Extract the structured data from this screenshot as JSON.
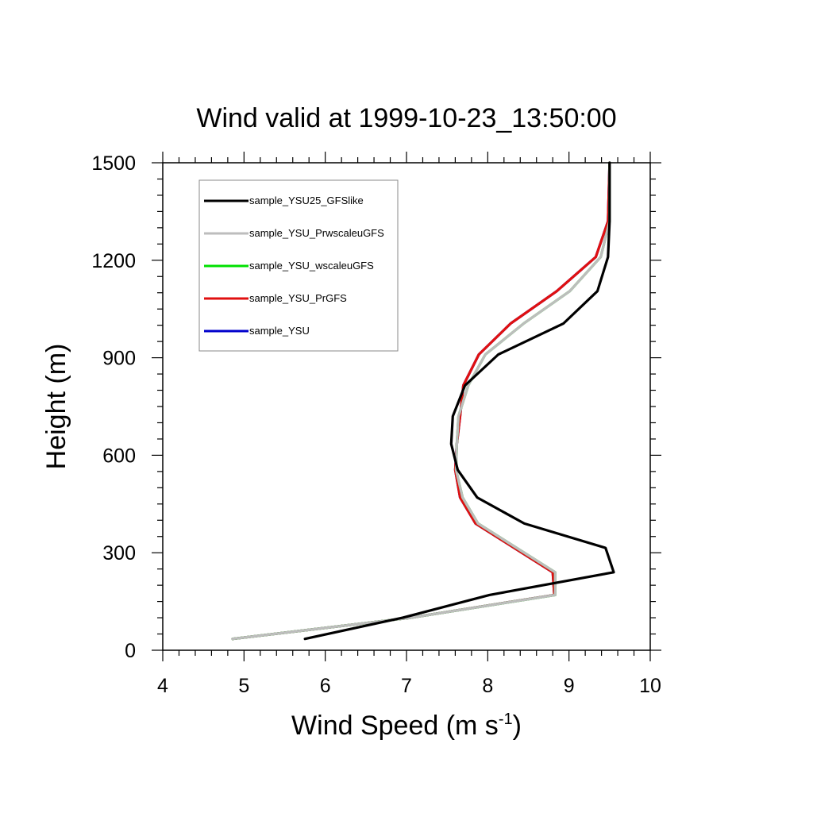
{
  "chart_data": {
    "type": "line",
    "title": "Wind valid at 1999-10-23_13:50:00",
    "xlabel": "Wind Speed (m s",
    "xlabel_sup": "-1",
    "xlabel_end": ")",
    "ylabel": "Height (m)",
    "xlim": [
      4,
      10
    ],
    "ylim": [
      0,
      1500
    ],
    "xticks": [
      "4",
      "5",
      "6",
      "7",
      "8",
      "9",
      "10"
    ],
    "yticks": [
      "0",
      "300",
      "600",
      "900",
      "1200",
      "1500"
    ],
    "grid": false,
    "legend_position": "top-left",
    "series": [
      {
        "name": "sample_YSU25_GFSlike",
        "color": "#000000",
        "points": [
          [
            5.75,
            35
          ],
          [
            6.95,
            100
          ],
          [
            8.02,
            170
          ],
          [
            9.55,
            240
          ],
          [
            9.45,
            315
          ],
          [
            8.45,
            390
          ],
          [
            7.87,
            470
          ],
          [
            7.63,
            555
          ],
          [
            7.55,
            635
          ],
          [
            7.57,
            720
          ],
          [
            7.72,
            815
          ],
          [
            8.13,
            910
          ],
          [
            8.93,
            1005
          ],
          [
            9.35,
            1105
          ],
          [
            9.48,
            1210
          ],
          [
            9.5,
            1320
          ],
          [
            9.5,
            1500
          ]
        ]
      },
      {
        "name": "sample_YSU_PrwscaleuGFS",
        "color": "#bdbdbd",
        "points": [
          [
            4.86,
            35
          ],
          [
            7.05,
            100
          ],
          [
            8.83,
            170
          ],
          [
            8.83,
            240
          ],
          [
            7.88,
            390
          ],
          [
            7.69,
            470
          ],
          [
            7.61,
            555
          ],
          [
            7.62,
            635
          ],
          [
            7.64,
            720
          ],
          [
            7.76,
            815
          ],
          [
            7.97,
            910
          ],
          [
            8.44,
            1005
          ],
          [
            9.01,
            1105
          ],
          [
            9.39,
            1210
          ],
          [
            9.5,
            1320
          ],
          [
            9.5,
            1500
          ]
        ]
      },
      {
        "name": "sample_YSU_wscaleuGFS",
        "color": "#00e000",
        "points": [
          [
            4.86,
            35
          ],
          [
            7.05,
            100
          ],
          [
            8.83,
            170
          ],
          [
            8.83,
            240
          ],
          [
            7.88,
            390
          ],
          [
            7.69,
            470
          ],
          [
            7.61,
            555
          ],
          [
            7.62,
            635
          ],
          [
            7.64,
            720
          ],
          [
            7.76,
            815
          ],
          [
            7.97,
            910
          ],
          [
            8.44,
            1005
          ],
          [
            9.01,
            1105
          ],
          [
            9.39,
            1210
          ],
          [
            9.5,
            1320
          ],
          [
            9.5,
            1500
          ]
        ]
      },
      {
        "name": "sample_YSU_PrGFS",
        "color": "#e01010",
        "points": [
          [
            4.86,
            35
          ],
          [
            7.05,
            100
          ],
          [
            8.82,
            170
          ],
          [
            8.8,
            240
          ],
          [
            7.85,
            390
          ],
          [
            7.66,
            470
          ],
          [
            7.6,
            555
          ],
          [
            7.62,
            635
          ],
          [
            7.66,
            720
          ],
          [
            7.7,
            815
          ],
          [
            7.89,
            910
          ],
          [
            8.28,
            1005
          ],
          [
            8.85,
            1105
          ],
          [
            9.33,
            1210
          ],
          [
            9.48,
            1320
          ],
          [
            9.5,
            1500
          ]
        ]
      },
      {
        "name": "sample_YSU",
        "color": "#0000cc",
        "points": [
          [
            4.86,
            35
          ],
          [
            7.05,
            100
          ],
          [
            8.82,
            170
          ],
          [
            8.8,
            240
          ],
          [
            7.85,
            390
          ],
          [
            7.66,
            470
          ],
          [
            7.6,
            555
          ],
          [
            7.62,
            635
          ],
          [
            7.66,
            720
          ],
          [
            7.7,
            815
          ],
          [
            7.89,
            910
          ],
          [
            8.28,
            1005
          ],
          [
            8.85,
            1105
          ],
          [
            9.33,
            1210
          ],
          [
            9.48,
            1320
          ],
          [
            9.5,
            1500
          ]
        ]
      }
    ],
    "draw_order": [
      4,
      3,
      2,
      1,
      0
    ]
  }
}
